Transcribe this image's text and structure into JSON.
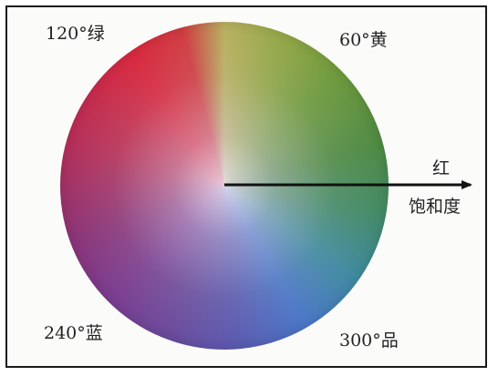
{
  "diagram": {
    "hue_labels": {
      "green": "120°绿",
      "yellow": "60°黄",
      "blue": "240°蓝",
      "magenta": "300°品"
    },
    "axis_end_label": "红",
    "axis_label": "饱和度"
  },
  "colors": {
    "frame": "#1a1a1a",
    "arrow": "#111111",
    "text": "#222222"
  }
}
